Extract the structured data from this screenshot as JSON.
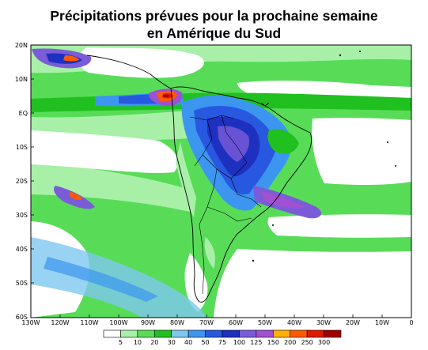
{
  "title": {
    "line1": "Précipitations prévues pour la prochaine semaine",
    "line2": "en Amérique du Sud"
  },
  "map": {
    "lat_labels": [
      "20N",
      "10N",
      "EQ",
      "10S",
      "20S",
      "30S",
      "40S",
      "50S",
      "60S"
    ],
    "lon_labels": [
      "130W",
      "120W",
      "110W",
      "100W",
      "90W",
      "80W",
      "70W",
      "60W",
      "50W",
      "40W",
      "30W",
      "20W",
      "10W",
      "0"
    ],
    "extent": {
      "lon": [
        -130,
        0
      ],
      "lat": [
        -60,
        20
      ]
    }
  },
  "colorbar": {
    "labels": [
      "5",
      "10",
      "20",
      "30",
      "40",
      "50",
      "75",
      "100",
      "125",
      "150",
      "200",
      "250",
      "300"
    ],
    "colors": [
      "#ffffff",
      "#a8f0a8",
      "#58dc58",
      "#20c020",
      "#7ec8f0",
      "#3c96f0",
      "#2858e0",
      "#1e30c0",
      "#7b5cd8",
      "#a050d0",
      "#ffb000",
      "#ff5a00",
      "#e01800",
      "#a00000"
    ]
  }
}
